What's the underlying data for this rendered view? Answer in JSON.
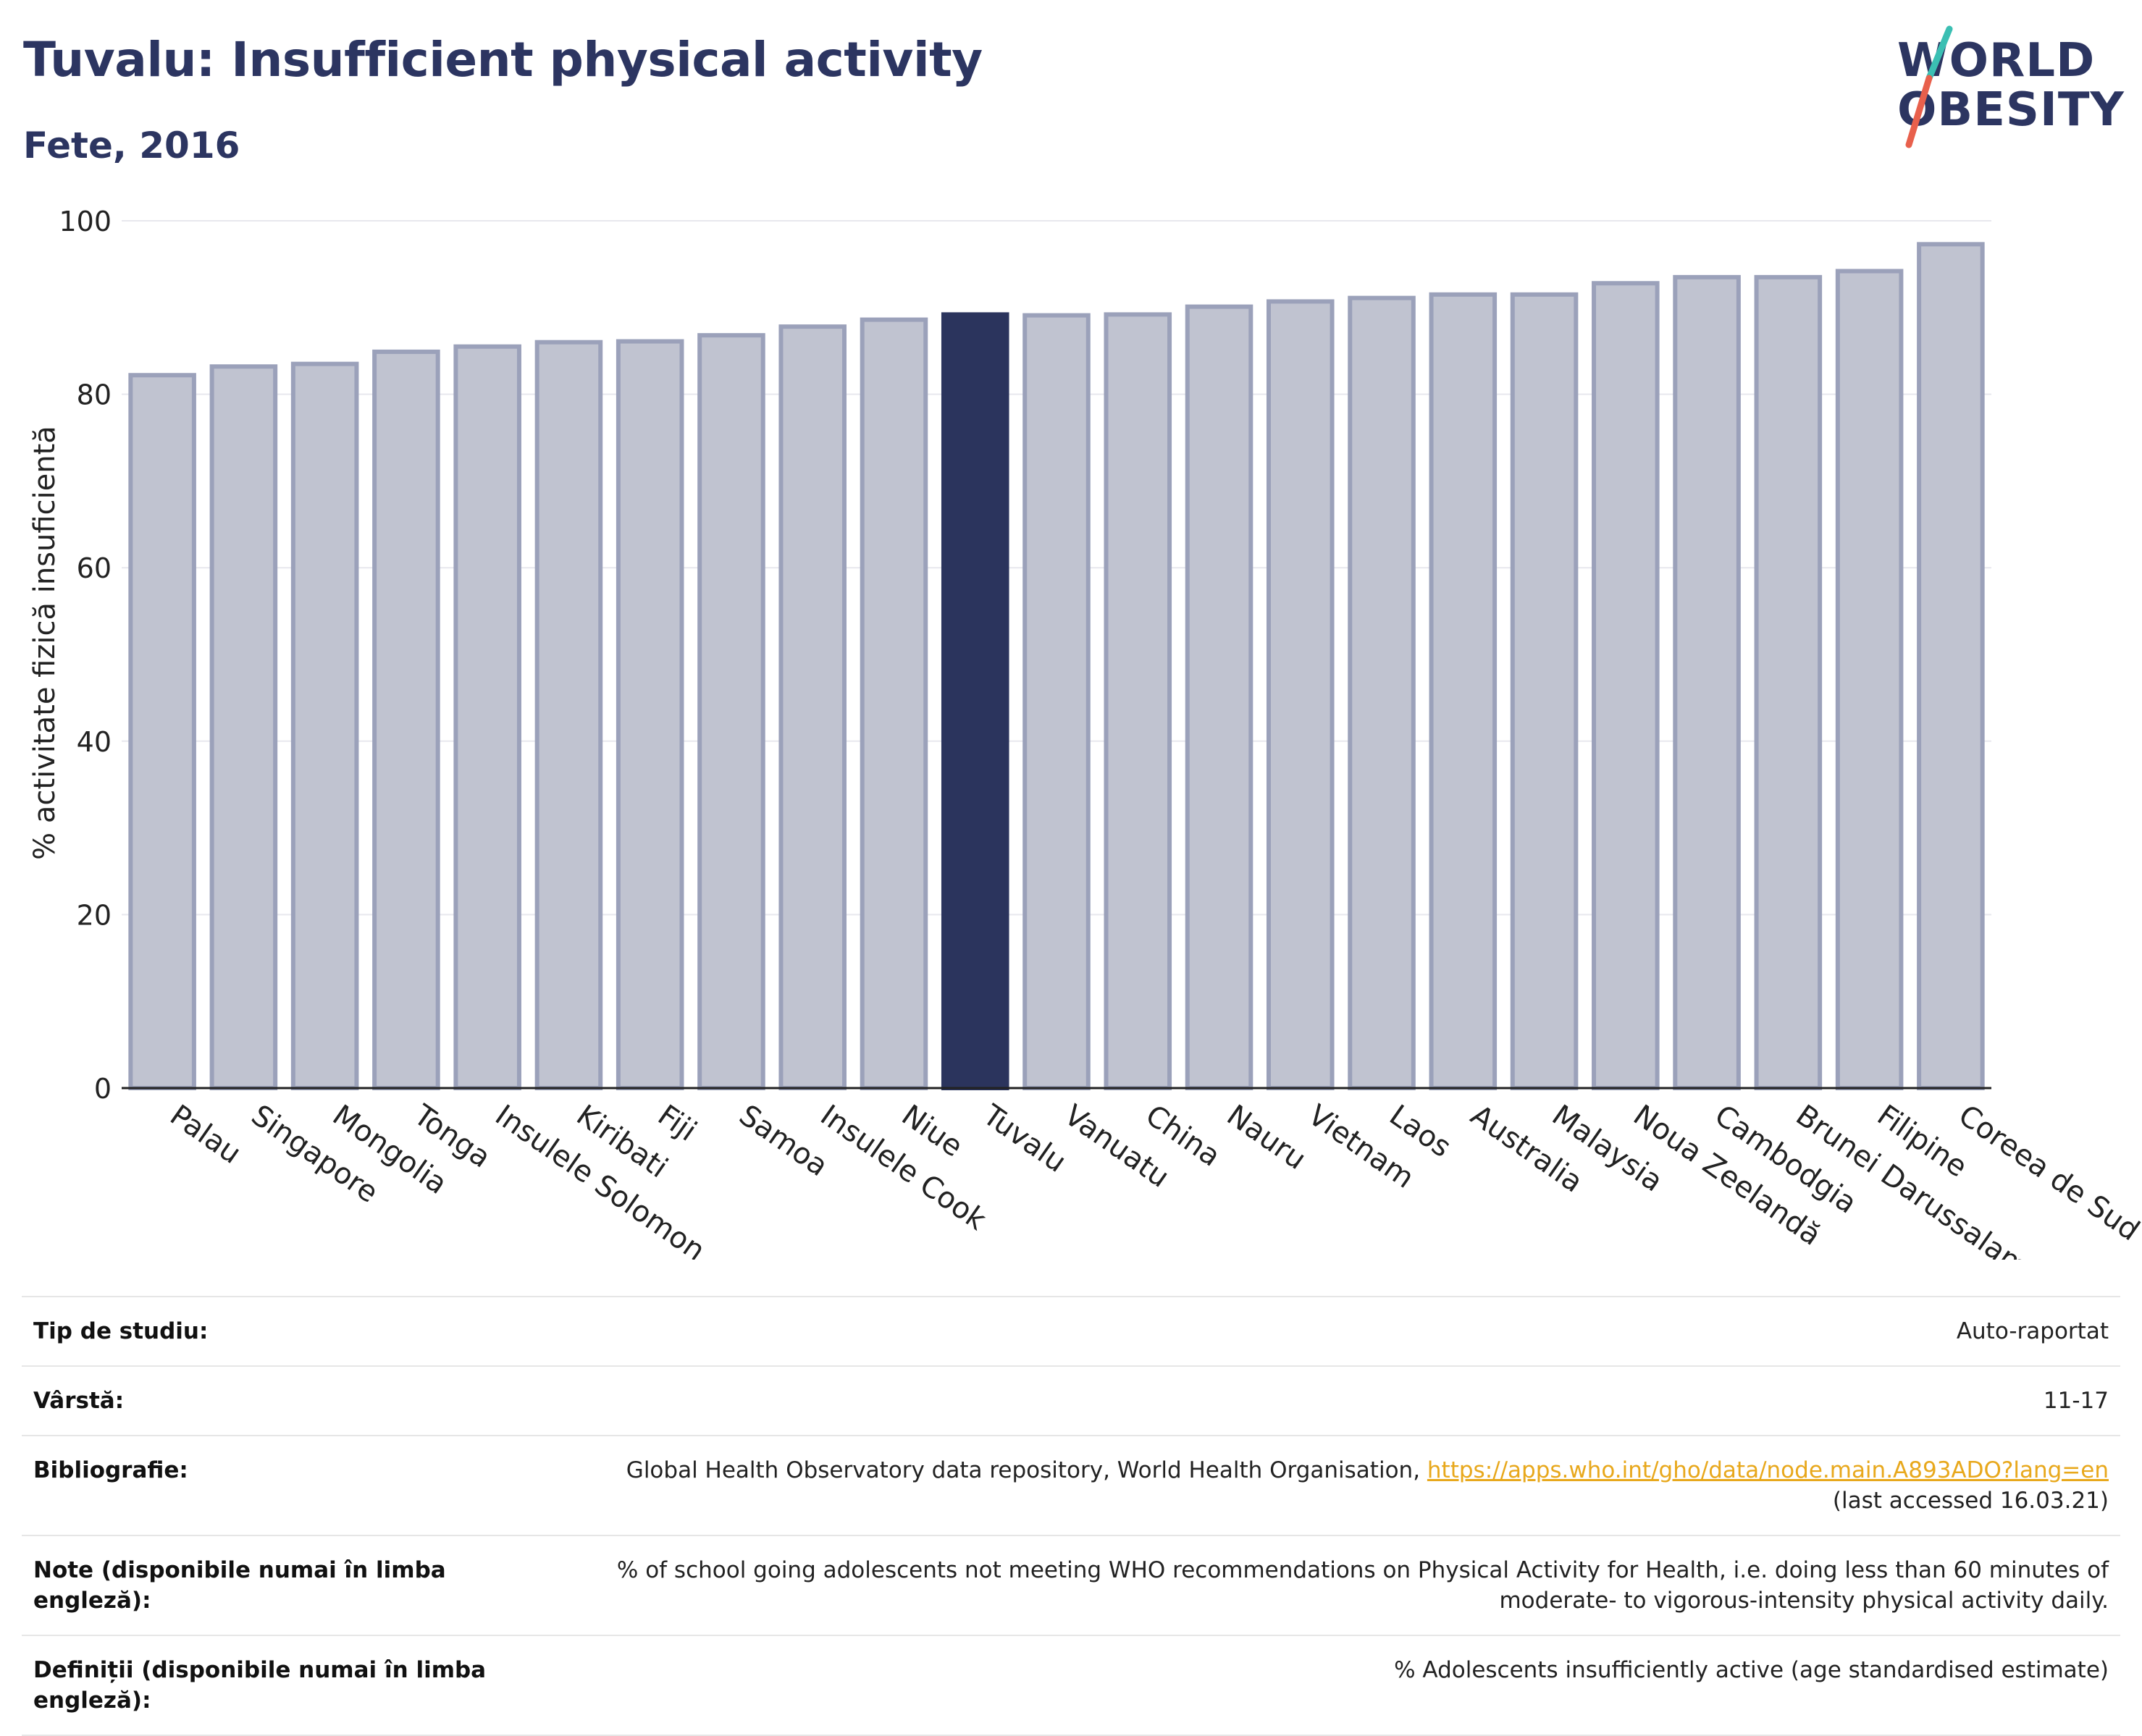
{
  "header": {
    "title": "Tuvalu: Insufficient physical activity",
    "subtitle": "Fete, 2016"
  },
  "logo": {
    "line1": "WORLD",
    "line2": "OBESITY",
    "colors": {
      "text": "#2c3561",
      "slash_top": "#3bbfb3",
      "slash_bottom": "#e8604c"
    }
  },
  "colors": {
    "bar": "#c0c3d0",
    "bar_stroke": "#9ba1ba",
    "highlight": "#2b345d",
    "grid": "#e8e8ee",
    "axis": "#222222"
  },
  "chart_data": {
    "type": "bar",
    "categories": [
      "Palau",
      "Singapore",
      "Mongolia",
      "Tonga",
      "Insulele Solomon",
      "Kiribati",
      "Fiji",
      "Samoa",
      "Insulele Cook",
      "Niue",
      "Tuvalu",
      "Vanuatu",
      "China",
      "Nauru",
      "Vietnam",
      "Laos",
      "Australia",
      "Malaysia",
      "Noua Zeelandă",
      "Cambodgia",
      "Brunei Darussalam",
      "Filipine",
      "Coreea de Sud"
    ],
    "values": [
      82.2,
      83.2,
      83.5,
      84.9,
      85.5,
      86.0,
      86.1,
      86.8,
      87.8,
      88.6,
      89.2,
      89.1,
      89.2,
      90.1,
      90.7,
      91.1,
      91.5,
      91.5,
      92.8,
      93.5,
      93.5,
      94.2,
      97.3
    ],
    "highlight": "Tuvalu",
    "ylabel": "% activitate fizică insuficientă",
    "xlabel": "",
    "ylim": [
      0,
      100
    ],
    "yticks": [
      0,
      20,
      40,
      60,
      80,
      100
    ],
    "grid": true
  },
  "info": {
    "rows": [
      {
        "key": "Tip de studiu:",
        "value": "Auto-raportat"
      },
      {
        "key": "Vârstă:",
        "value": "11-17"
      },
      {
        "key": "Bibliografie:",
        "value_pre": "Global Health Observatory data repository, World Health Organisation, ",
        "link": "https://apps.who.int/gho/data/node.main.A893ADO?lang=en",
        "value_post": "(last accessed 16.03.21)"
      },
      {
        "key": "Note (disponibile numai în limba engleză):",
        "value": "% of school going adolescents not meeting WHO recommendations on Physical Activity for Health, i.e. doing less than 60 minutes of moderate- to vigorous-intensity physical activity daily."
      },
      {
        "key": "Definiții (disponibile numai în limba engleză):",
        "value": "% Adolescents insufficiently active (age standardised estimate)"
      }
    ]
  }
}
